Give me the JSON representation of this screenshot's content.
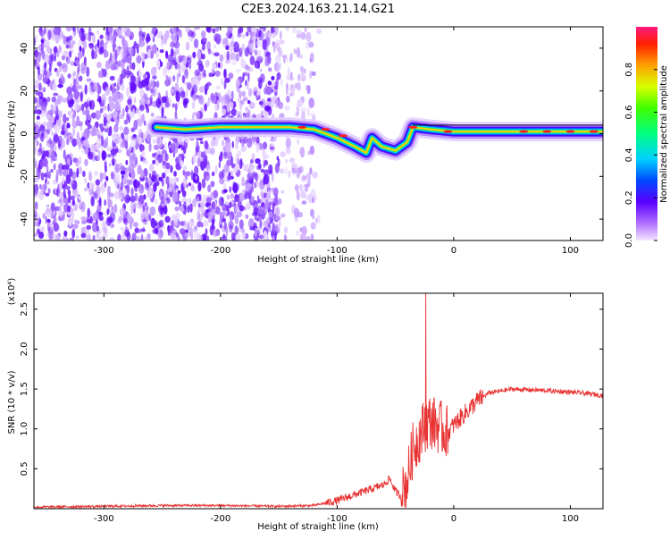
{
  "title": "C2E3.2024.163.21.14.G21",
  "chart_data": [
    {
      "type": "heatmap",
      "xlabel": "Height of straight line (km)",
      "ylabel": "Frequency (Hz)",
      "xlim": [
        -360,
        128
      ],
      "ylim": [
        -50,
        50
      ],
      "xticks": [
        -300,
        -200,
        -100,
        0,
        100
      ],
      "yticks": [
        -40,
        -20,
        0,
        20,
        40
      ],
      "colorbar": {
        "label": "Normalized spectral amplitude",
        "range": [
          0.0,
          1.0
        ],
        "ticks": [
          0.0,
          0.2,
          0.4,
          0.6,
          0.8
        ]
      },
      "ridge": [
        {
          "x": -255,
          "y": 3
        },
        {
          "x": -230,
          "y": 2
        },
        {
          "x": -200,
          "y": 3
        },
        {
          "x": -170,
          "y": 3
        },
        {
          "x": -140,
          "y": 3
        },
        {
          "x": -120,
          "y": 2
        },
        {
          "x": -100,
          "y": -2
        },
        {
          "x": -85,
          "y": -6
        },
        {
          "x": -75,
          "y": -9
        },
        {
          "x": -70,
          "y": -2
        },
        {
          "x": -62,
          "y": -6
        },
        {
          "x": -50,
          "y": -8
        },
        {
          "x": -40,
          "y": -4
        },
        {
          "x": -35,
          "y": 3
        },
        {
          "x": -20,
          "y": 2
        },
        {
          "x": 0,
          "y": 1
        },
        {
          "x": 50,
          "y": 1
        },
        {
          "x": 100,
          "y": 1
        },
        {
          "x": 128,
          "y": 1
        }
      ]
    },
    {
      "type": "line",
      "xlabel": "Height of straight line (km)",
      "ylabel": "SNR (10 * v/v)",
      "yunit": "(x10⁴)",
      "xlim": [
        -360,
        128
      ],
      "ylim": [
        0,
        2.7
      ],
      "xticks": [
        -300,
        -200,
        -100,
        0,
        100
      ],
      "yticks": [
        0.5,
        1.0,
        1.5,
        2.0,
        2.5
      ],
      "series": [
        {
          "color": "#e83232",
          "points": [
            [
              -360,
              0.02
            ],
            [
              -300,
              0.03
            ],
            [
              -250,
              0.04
            ],
            [
              -200,
              0.04
            ],
            [
              -150,
              0.03
            ],
            [
              -120,
              0.04
            ],
            [
              -100,
              0.1
            ],
            [
              -80,
              0.2
            ],
            [
              -70,
              0.25
            ],
            [
              -60,
              0.3
            ],
            [
              -55,
              0.38
            ],
            [
              -50,
              0.22
            ],
            [
              -45,
              0.15
            ],
            [
              -40,
              0.35
            ],
            [
              -35,
              0.75
            ],
            [
              -30,
              0.9
            ],
            [
              -25,
              1.05
            ],
            [
              -20,
              1.1
            ],
            [
              -15,
              1.05
            ],
            [
              -10,
              1.0
            ],
            [
              -5,
              0.95
            ],
            [
              0,
              1.05
            ],
            [
              10,
              1.2
            ],
            [
              20,
              1.35
            ],
            [
              30,
              1.45
            ],
            [
              50,
              1.5
            ],
            [
              80,
              1.48
            ],
            [
              100,
              1.46
            ],
            [
              110,
              1.45
            ],
            [
              128,
              1.42
            ]
          ],
          "peak": {
            "x": -24,
            "y": 2.7
          }
        }
      ]
    }
  ]
}
